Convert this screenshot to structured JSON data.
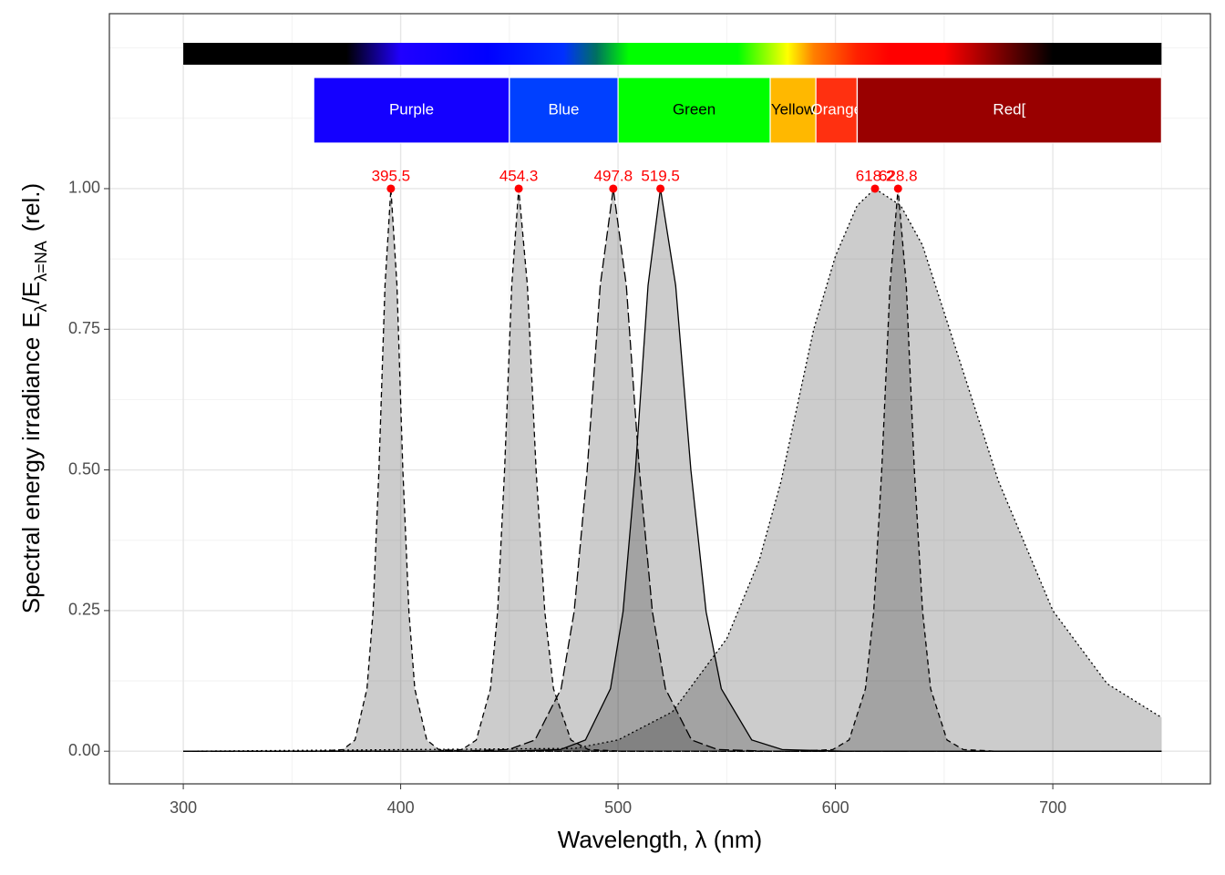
{
  "chart_data": {
    "type": "area",
    "xlabel": "Wavelength, λ (nm)",
    "ylabel": [
      "Spectral energy irradiance",
      "E",
      "λ",
      "/",
      "E",
      "λ=NA",
      "(rel.)"
    ],
    "ylabel_sub": [
      false,
      false,
      true,
      false,
      false,
      true,
      false
    ],
    "xlim": [
      266,
      772.5
    ],
    "ylim": [
      -0.058,
      1.311
    ],
    "xticks": [
      300,
      400,
      500,
      600,
      700
    ],
    "yticks": [
      {
        "value": 0,
        "label": "0.00"
      },
      {
        "value": 0.25,
        "label": "0.25"
      },
      {
        "value": 0.5,
        "label": "0.50"
      },
      {
        "value": 0.75,
        "label": "0.75"
      },
      {
        "value": 1,
        "label": "1.00"
      }
    ],
    "x_minor_grid": [
      350,
      450,
      550,
      650,
      750
    ],
    "y_minor_grid": [
      0.125,
      0.375,
      0.625,
      0.875,
      1.125,
      1.25
    ],
    "grid": true,
    "fill_color": "#000000",
    "fill_alpha": 0.2,
    "peak_color": "#ff0000",
    "color_bar": {
      "range": [
        300,
        750
      ],
      "stops": [
        {
          "at": 300,
          "color": "#000000"
        },
        {
          "at": 375,
          "color": "#000000"
        },
        {
          "at": 400,
          "color": "#2000ff"
        },
        {
          "at": 440,
          "color": "#0000ff"
        },
        {
          "at": 475,
          "color": "#0030ff"
        },
        {
          "at": 490,
          "color": "#007060"
        },
        {
          "at": 505,
          "color": "#00ff00"
        },
        {
          "at": 555,
          "color": "#00ff00"
        },
        {
          "at": 578,
          "color": "#ffff00"
        },
        {
          "at": 590,
          "color": "#ff8000"
        },
        {
          "at": 610,
          "color": "#ff2000"
        },
        {
          "at": 625,
          "color": "#ff0000"
        },
        {
          "at": 650,
          "color": "#ff0000"
        },
        {
          "at": 700,
          "color": "#000000"
        },
        {
          "at": 750,
          "color": "#000000"
        }
      ]
    },
    "bands": [
      {
        "name": "Purple",
        "start": 360,
        "end": 450,
        "color": "#1400ff",
        "text_color": "#ffffff"
      },
      {
        "name": "Blue",
        "start": 450,
        "end": 500,
        "color": "#0040ff",
        "text_color": "#ffffff"
      },
      {
        "name": "Green",
        "start": 500,
        "end": 570,
        "color": "#00ff00",
        "text_color": "#000000"
      },
      {
        "name": "Yellow",
        "start": 570,
        "end": 591,
        "color": "#ffb800",
        "text_color": "#000000"
      },
      {
        "name": "Orange",
        "start": 591,
        "end": 610,
        "color": "#ff3010",
        "text_color": "#ffffff"
      },
      {
        "name": "Red[",
        "start": 610,
        "end": 750,
        "color": "#990000",
        "text_color": "#ffffff"
      }
    ],
    "series": [
      {
        "linetype": "dashed",
        "peak": 395.5,
        "x": [
          300,
          362.5,
          373.5,
          379,
          384.5,
          387.3,
          390,
          392.8,
          395.5,
          398.3,
          401,
          403.8,
          406.5,
          412,
          417.5,
          428.5,
          750
        ],
        "values": [
          0,
          0,
          0.003,
          0.02,
          0.111,
          0.248,
          0.5,
          0.828,
          1,
          0.828,
          0.5,
          0.248,
          0.111,
          0.02,
          0.003,
          0,
          0
        ]
      },
      {
        "linetype": "dashed",
        "peak": 454.3,
        "x": [
          300,
          415.3,
          428.3,
          434.8,
          441.3,
          444.6,
          447.8,
          451.1,
          454.3,
          458.3,
          462.3,
          466.3,
          470.3,
          478.3,
          486.3,
          502.3,
          750
        ],
        "values": [
          0,
          0,
          0.003,
          0.02,
          0.111,
          0.248,
          0.5,
          0.828,
          1,
          0.828,
          0.5,
          0.248,
          0.111,
          0.02,
          0.003,
          0,
          0
        ]
      },
      {
        "linetype": "longdash",
        "peak": 497.8,
        "x": [
          300,
          425.8,
          449.8,
          461.8,
          473.8,
          479.8,
          485.8,
          491.8,
          497.8,
          503.8,
          509.8,
          515.8,
          521.8,
          533.8,
          545.8,
          569.8,
          750
        ],
        "values": [
          0,
          0,
          0.003,
          0.02,
          0.111,
          0.248,
          0.5,
          0.828,
          1,
          0.828,
          0.5,
          0.248,
          0.111,
          0.02,
          0.003,
          0,
          0
        ]
      },
      {
        "linetype": "solid",
        "peak": 519.5,
        "x": [
          300,
          450.5,
          473.5,
          485,
          496.5,
          502.3,
          508,
          513.8,
          519.5,
          526.5,
          533.5,
          540.5,
          547.5,
          561.5,
          575.5,
          603.5,
          750
        ],
        "values": [
          0,
          0,
          0.003,
          0.02,
          0.111,
          0.248,
          0.5,
          0.828,
          1,
          0.828,
          0.5,
          0.248,
          0.111,
          0.02,
          0.003,
          0,
          0
        ]
      },
      {
        "linetype": "dotted",
        "peak": 618.2,
        "x": [
          300,
          480,
          500,
          525,
          550,
          565,
          575,
          590,
          600,
          610,
          618.2,
          630,
          640,
          650,
          660,
          675,
          700,
          725,
          750
        ],
        "values": [
          0,
          0.005,
          0.02,
          0.07,
          0.2,
          0.34,
          0.48,
          0.75,
          0.88,
          0.97,
          1,
          0.97,
          0.9,
          0.78,
          0.66,
          0.48,
          0.25,
          0.12,
          0.06
        ]
      },
      {
        "linetype": "dashed",
        "peak": 628.8,
        "x": [
          300,
          583.8,
          598.8,
          606.3,
          613.8,
          617.6,
          621.3,
          625.1,
          628.8,
          632.6,
          636.3,
          640.1,
          643.8,
          651.3,
          658.8,
          673.8,
          750
        ],
        "values": [
          0,
          0,
          0.003,
          0.02,
          0.111,
          0.248,
          0.5,
          0.828,
          1,
          0.828,
          0.5,
          0.248,
          0.111,
          0.02,
          0.003,
          0,
          0
        ]
      }
    ]
  }
}
